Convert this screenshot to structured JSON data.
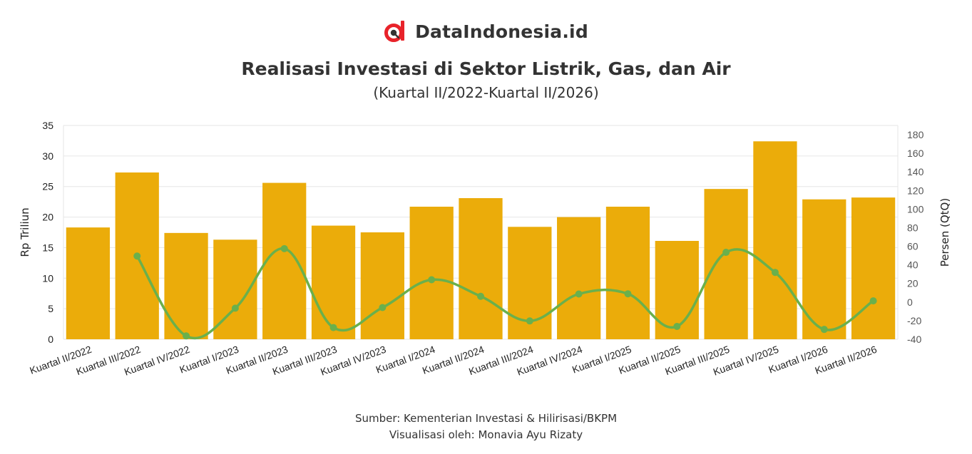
{
  "brand": {
    "name": "DataIndonesia.id",
    "logo_icon": "data-indonesia-logo-icon",
    "logo_color": "#e8232a"
  },
  "header": {
    "title": "Realisasi Investasi di Sektor Listrik, Gas, dan Air",
    "subtitle": "(Kuartal II/2022-Kuartal II/2026)"
  },
  "footer": {
    "source": "Sumber: Kementerian Investasi & Hilirisasi/BKPM",
    "credit": "Visualisasi oleh: Monavia Ayu Rizaty"
  },
  "chart_data": {
    "type": "bar",
    "categories": [
      "Kuartal II/2022",
      "Kuartal III/2022",
      "Kuartal IV/2022",
      "Kuartal I/2023",
      "Kuartal II/2023",
      "Kuartal III/2023",
      "Kuartal IV/2023",
      "Kuartal I/2024",
      "Kuartal II/2024",
      "Kuartal III/2024",
      "Kuartal IV/2024",
      "Kuartal I/2025",
      "Kuartal II/2025",
      "Kuartal III/2025",
      "Kuartal IV/2025",
      "Kuartal I/2026",
      "Kuartal II/2026"
    ],
    "series": [
      {
        "type": "bar",
        "axis": "left",
        "color": "#ebac0a",
        "values": [
          18.3,
          27.3,
          17.4,
          16.3,
          25.6,
          18.6,
          17.5,
          21.7,
          23.1,
          18.4,
          20.0,
          21.7,
          16.1,
          24.6,
          32.4,
          22.9,
          23.2
        ]
      },
      {
        "type": "line",
        "axis": "right",
        "color": "#6ab04c",
        "values": [
          null,
          49.5,
          -36.4,
          -6.6,
          57.5,
          -27.4,
          -5.9,
          24.0,
          6.2,
          -20.3,
          8.7,
          8.9,
          -26.2,
          53.5,
          31.9,
          -29.4,
          1.3
        ]
      }
    ],
    "ylabel": "Rp Triliun",
    "ylim": [
      0,
      35
    ],
    "yticks": [
      0,
      5,
      10,
      15,
      20,
      25,
      30,
      35
    ],
    "y2label": "Persen (QtQ)",
    "y2lim": [
      -40,
      190
    ],
    "y2ticks": [
      -40,
      -20,
      0,
      20,
      40,
      60,
      80,
      100,
      120,
      140,
      160,
      180
    ],
    "grid": true,
    "legend": "none"
  }
}
